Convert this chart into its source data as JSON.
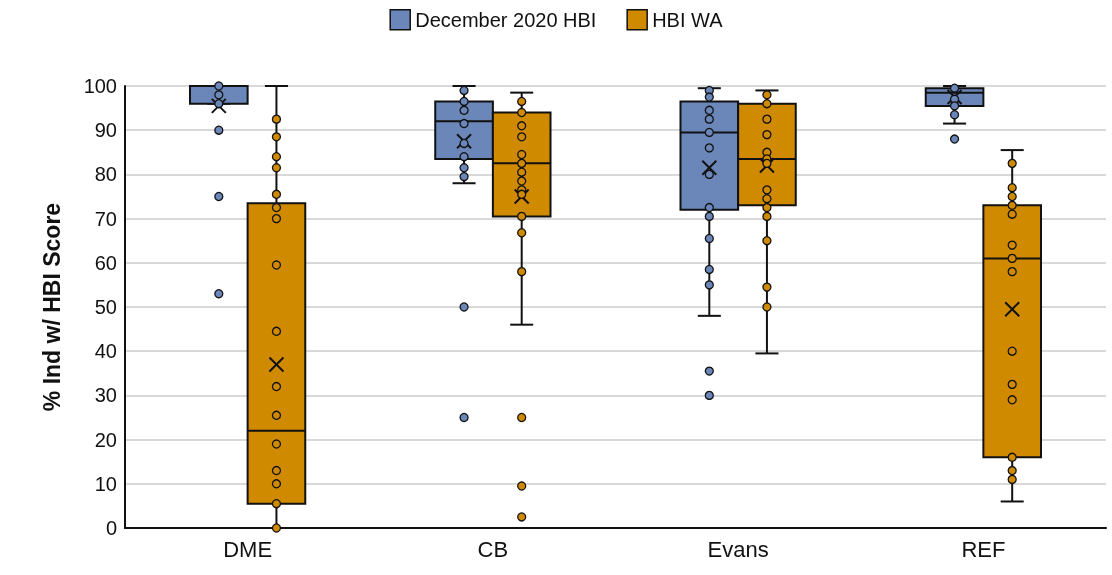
{
  "chart_data": {
    "type": "box",
    "ylabel": "% Ind w/ HBI Score",
    "categories": [
      "DME",
      "CB",
      "Evans",
      "REF"
    ],
    "ylim": [
      0,
      100
    ],
    "yticks": [
      0,
      10,
      20,
      30,
      40,
      50,
      60,
      70,
      80,
      90,
      100
    ],
    "grid": "y",
    "legend": "top",
    "marker": "circle",
    "series": [
      {
        "name": "December 2020 HBI",
        "color": "#6b86b8",
        "boxes": [
          {
            "low": 96,
            "q1": 96,
            "median": 100,
            "q3": 100,
            "high": 100,
            "mean": 95.5,
            "outliers": [
              90,
              75,
              53
            ]
          },
          {
            "low": 78,
            "q1": 83.5,
            "median": 92,
            "q3": 96.5,
            "high": 100,
            "mean": 87.5,
            "outliers": [
              50,
              25
            ]
          },
          {
            "low": 48,
            "q1": 72,
            "median": 89.5,
            "q3": 96.5,
            "high": 99.5,
            "mean": 81.5,
            "outliers": [
              35.5,
              30
            ]
          },
          {
            "low": 91.5,
            "q1": 95.5,
            "median": 98.5,
            "q3": 99.5,
            "high": 100,
            "mean": 97.5,
            "outliers": [
              88
            ]
          }
        ]
      },
      {
        "name": "HBI WA",
        "color": "#d08a00",
        "boxes": [
          {
            "low": 0,
            "q1": 5.5,
            "median": 22,
            "q3": 73.5,
            "high": 100,
            "mean": 37
          },
          {
            "low": 46,
            "q1": 70.5,
            "median": 82.5,
            "q3": 94,
            "high": 98.5,
            "mean": 75,
            "outliers": [
              25,
              9.5,
              2.5
            ]
          },
          {
            "low": 39.5,
            "q1": 73,
            "median": 83.5,
            "q3": 96,
            "high": 99,
            "mean": 82
          },
          {
            "low": 6,
            "q1": 16,
            "median": 61,
            "q3": 73,
            "high": 85.5,
            "mean": 49.5
          }
        ]
      },
      {
        "type": "scatter",
        "color": "#6b86b8",
        "x": [
          "DME",
          "DME",
          "DME",
          "CB",
          "CB",
          "CB",
          "CB",
          "CB",
          "CB",
          "CB",
          "CB",
          "Evans",
          "Evans",
          "Evans",
          "Evans",
          "Evans",
          "Evans",
          "Evans",
          "Evans",
          "Evans",
          "Evans",
          "Evans",
          "Evans",
          "REF",
          "REF",
          "REF",
          "REF"
        ],
        "values": [
          100,
          98,
          96,
          99,
          96.5,
          94.5,
          91.5,
          87,
          84,
          81.5,
          79.5,
          99,
          97.5,
          94.5,
          92.5,
          89.5,
          86,
          80,
          72.5,
          70.5,
          65.5,
          58.5,
          55,
          99.5,
          97,
          95.5,
          93.5
        ]
      },
      {
        "type": "scatter",
        "color": "#d08a00",
        "x": [
          "DME",
          "DME",
          "DME",
          "DME",
          "DME",
          "DME",
          "DME",
          "DME",
          "DME",
          "DME",
          "DME",
          "DME",
          "DME",
          "DME",
          "DME",
          "DME",
          "CB",
          "CB",
          "CB",
          "CB",
          "CB",
          "CB",
          "CB",
          "CB",
          "CB",
          "CB",
          "CB",
          "CB",
          "CB",
          "Evans",
          "Evans",
          "Evans",
          "Evans",
          "Evans",
          "Evans",
          "Evans",
          "Evans",
          "Evans",
          "Evans",
          "Evans",
          "Evans",
          "Evans",
          "Evans",
          "REF",
          "REF",
          "REF",
          "REF",
          "REF",
          "REF",
          "REF",
          "REF",
          "REF",
          "REF",
          "REF",
          "REF",
          "REF",
          "REF"
        ],
        "values": [
          92.5,
          88.5,
          84,
          81.5,
          75.5,
          72.5,
          70,
          59.5,
          44.5,
          32,
          25.5,
          19,
          13,
          10,
          5.5,
          0,
          96.5,
          94,
          91,
          88.5,
          84.5,
          82.5,
          80.5,
          78.5,
          76.5,
          75.5,
          70.5,
          66.8,
          58,
          98,
          96,
          92.5,
          89,
          85,
          83.5,
          82.5,
          76.5,
          74.5,
          72.5,
          70.5,
          65,
          54.5,
          50,
          82.5,
          77,
          75,
          73,
          71,
          64,
          61,
          58,
          40,
          32.5,
          29,
          16,
          13,
          11
        ]
      }
    ]
  }
}
